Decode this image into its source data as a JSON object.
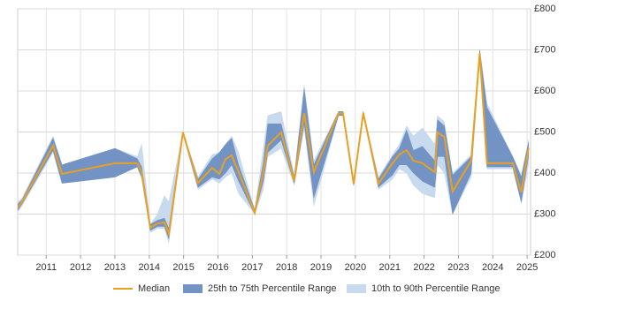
{
  "chart_data": {
    "type": "line",
    "x": [
      2010.18,
      2010.3,
      2011.2,
      2011.46,
      2013.0,
      2013.65,
      2013.78,
      2014.03,
      2014.24,
      2014.44,
      2014.57,
      2014.98,
      2015.42,
      2015.83,
      2016.04,
      2016.22,
      2016.4,
      2016.6,
      2017.07,
      2017.32,
      2017.45,
      2017.84,
      2018.22,
      2018.51,
      2018.79,
      2019.51,
      2019.64,
      2019.95,
      2020.23,
      2020.67,
      2021.08,
      2021.28,
      2021.49,
      2021.69,
      2021.95,
      2022.31,
      2022.39,
      2022.59,
      2022.83,
      2023.37,
      2023.62,
      2023.83,
      2024.58,
      2024.83,
      2025.04
    ],
    "series": [
      {
        "name": "Median",
        "color": "#e8a023",
        "values": [
          316,
          330,
          467,
          398,
          424,
          424,
          402,
          267,
          277,
          280,
          252,
          499,
          376,
          413,
          398,
          434,
          443,
          402,
          303,
          402,
          467,
          499,
          381,
          546,
          402,
          546,
          546,
          374,
          546,
          374,
          424,
          445,
          456,
          430,
          424,
          402,
          499,
          488,
          355,
          430,
          692,
          424,
          424,
          353,
          461
        ]
      },
      {
        "name": "25th to 75th Percentile Range",
        "color": "#7393c4",
        "lower": [
          310,
          325,
          455,
          375,
          390,
          415,
          390,
          260,
          270,
          270,
          240,
          495,
          365,
          390,
          385,
          400,
          420,
          380,
          300,
          380,
          450,
          480,
          375,
          520,
          340,
          540,
          540,
          370,
          545,
          365,
          395,
          420,
          420,
          400,
          380,
          365,
          440,
          440,
          300,
          400,
          685,
          415,
          415,
          330,
          440
        ],
        "upper": [
          325,
          335,
          485,
          420,
          460,
          435,
          415,
          275,
          285,
          290,
          265,
          500,
          385,
          435,
          450,
          470,
          485,
          420,
          310,
          425,
          520,
          520,
          390,
          605,
          420,
          550,
          550,
          380,
          550,
          385,
          440,
          460,
          505,
          455,
          465,
          430,
          530,
          515,
          395,
          440,
          700,
          560,
          440,
          390,
          475
        ]
      },
      {
        "name": "10th to 90th Percentile Range",
        "color": "#c8daee",
        "lower": [
          305,
          320,
          450,
          375,
          390,
          415,
          385,
          255,
          265,
          265,
          230,
          495,
          360,
          385,
          375,
          390,
          400,
          350,
          300,
          360,
          440,
          460,
          370,
          510,
          320,
          540,
          540,
          370,
          545,
          360,
          385,
          410,
          400,
          370,
          350,
          340,
          420,
          400,
          300,
          390,
          680,
          410,
          410,
          325,
          420
        ],
        "upper": [
          330,
          340,
          490,
          420,
          460,
          440,
          470,
          275,
          300,
          345,
          330,
          500,
          390,
          445,
          450,
          470,
          490,
          450,
          310,
          460,
          540,
          550,
          395,
          615,
          430,
          550,
          550,
          380,
          550,
          390,
          445,
          470,
          515,
          490,
          510,
          470,
          540,
          525,
          400,
          445,
          700,
          570,
          440,
          395,
          480
        ]
      }
    ],
    "xlim": [
      2010.17,
      2025.1
    ],
    "xticks": [
      2011,
      2012,
      2013,
      2014,
      2015,
      2016,
      2017,
      2018,
      2019,
      2020,
      2021,
      2022,
      2023,
      2024,
      2025
    ],
    "ylim": [
      200,
      800
    ],
    "yticks": [
      {
        "value": 200,
        "label": "£200"
      },
      {
        "value": 300,
        "label": "£300"
      },
      {
        "value": 400,
        "label": "£400"
      },
      {
        "value": 500,
        "label": "£500"
      },
      {
        "value": 600,
        "label": "£600"
      },
      {
        "value": 700,
        "label": "£700"
      },
      {
        "value": 800,
        "label": "£800"
      }
    ],
    "grid": true
  }
}
